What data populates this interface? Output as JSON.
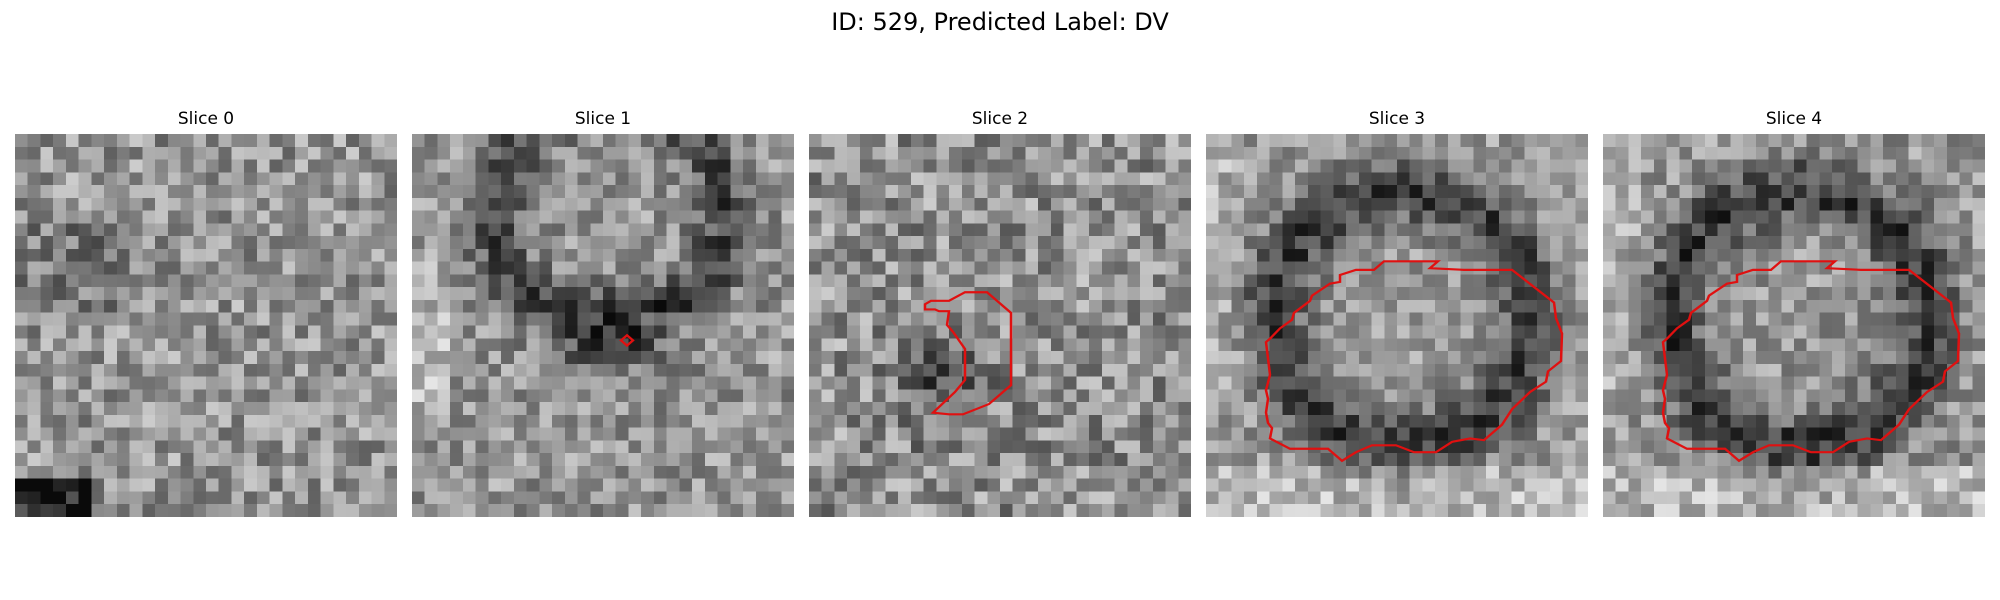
{
  "figure": {
    "title": "ID: 529, Predicted Label: DV",
    "contour_color": "#e01010"
  },
  "slices": [
    {
      "label": "Slice 0",
      "has_contour": false
    },
    {
      "label": "Slice 1",
      "has_contour": true
    },
    {
      "label": "Slice 2",
      "has_contour": true
    },
    {
      "label": "Slice 3",
      "has_contour": true
    },
    {
      "label": "Slice 4",
      "has_contour": true
    }
  ]
}
